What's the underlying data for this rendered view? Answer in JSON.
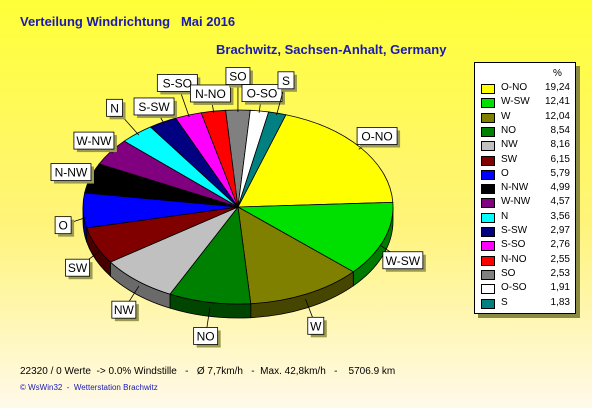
{
  "title": "Verteilung Windrichtung   Mai 2016",
  "subtitle": "Brachwitz, Sachsen-Anhalt, Germany",
  "legend_header": "%",
  "footer": "22320 / 0 Werte  -> 0.0% Windstille   -   Ø 7,7km/h   -  Max. 42,8km/h   -    5706.9 km",
  "credit": "© WsWin32  -  Wetterstation Brachwitz",
  "chart_data": {
    "type": "pie",
    "title": "Verteilung Windrichtung   Mai 2016",
    "subtitle": "Brachwitz, Sachsen-Anhalt, Germany",
    "unit": "%",
    "legend_position": "right",
    "slices": [
      {
        "label": "O-NO",
        "value": 19.24,
        "display": "19,24",
        "color": "#ffff00"
      },
      {
        "label": "W-SW",
        "value": 12.41,
        "display": "12,41",
        "color": "#00e000"
      },
      {
        "label": "W",
        "value": 12.04,
        "display": "12,04",
        "color": "#808000"
      },
      {
        "label": "NO",
        "value": 8.54,
        "display": "8,54",
        "color": "#008000"
      },
      {
        "label": "NW",
        "value": 8.16,
        "display": "8,16",
        "color": "#c0c0c0"
      },
      {
        "label": "SW",
        "value": 6.15,
        "display": "6,15",
        "color": "#800000"
      },
      {
        "label": "O",
        "value": 5.79,
        "display": "5,79",
        "color": "#0000ff"
      },
      {
        "label": "N-NW",
        "value": 4.99,
        "display": "4,99",
        "color": "#000000"
      },
      {
        "label": "W-NW",
        "value": 4.57,
        "display": "4,57",
        "color": "#800080"
      },
      {
        "label": "N",
        "value": 3.56,
        "display": "3,56",
        "color": "#00ffff"
      },
      {
        "label": "S-SW",
        "value": 2.97,
        "display": "2,97",
        "color": "#000080"
      },
      {
        "label": "S-SO",
        "value": 2.76,
        "display": "2,76",
        "color": "#ff00ff"
      },
      {
        "label": "N-NO",
        "value": 2.55,
        "display": "2,55",
        "color": "#ff0000"
      },
      {
        "label": "SO",
        "value": 2.53,
        "display": "2,53",
        "color": "#808080"
      },
      {
        "label": "O-SO",
        "value": 1.91,
        "display": "1,91",
        "color": "#ffffff"
      },
      {
        "label": "S",
        "value": 1.83,
        "display": "1,83",
        "color": "#008080"
      }
    ]
  }
}
